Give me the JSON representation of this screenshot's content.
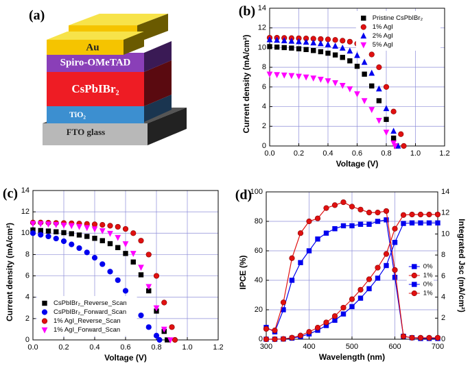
{
  "panel_a": {
    "label": "(a)",
    "layers": [
      "Au",
      "Spiro-OMeTAD",
      "CsPbIBr₂",
      "TiO₂",
      "FTO glass"
    ]
  },
  "chart_data": [
    {
      "type": "scatter",
      "panel_label": "(b)",
      "xlabel": "Voltage (V)",
      "ylabel": "Current density (mA/cm²)",
      "xlim": [
        0,
        1.2
      ],
      "ylim": [
        0,
        14
      ],
      "xticks": [
        {
          "value": 0,
          "label": "0.0"
        },
        0.2,
        0.4,
        0.6,
        0.8,
        {
          "value": 1,
          "label": "1.0"
        },
        1.2
      ],
      "yticks": [
        0,
        2,
        4,
        6,
        8,
        10,
        12,
        14
      ],
      "grid": true,
      "legend": "upper right",
      "lines": false,
      "series": [
        {
          "name": "Pristine CsPbIBr₂",
          "color": "#000000",
          "marker": "square",
          "x": [
            0,
            0.05,
            0.1,
            0.15,
            0.2,
            0.25,
            0.3,
            0.35,
            0.4,
            0.45,
            0.5,
            0.55,
            0.6,
            0.65,
            0.7,
            0.75,
            0.8,
            0.85,
            0.87
          ],
          "values": [
            10.1,
            10.05,
            10.0,
            9.95,
            9.88,
            9.8,
            9.7,
            9.58,
            9.43,
            9.25,
            9.0,
            8.65,
            8.1,
            7.3,
            6.1,
            4.6,
            2.7,
            0.8,
            0
          ]
        },
        {
          "name": "1% AgI",
          "color": "#e01010",
          "marker": "circle",
          "x": [
            0,
            0.05,
            0.1,
            0.15,
            0.2,
            0.25,
            0.3,
            0.35,
            0.4,
            0.45,
            0.5,
            0.55,
            0.6,
            0.65,
            0.7,
            0.75,
            0.8,
            0.85,
            0.9,
            0.92
          ],
          "values": [
            11.0,
            11.0,
            10.98,
            10.96,
            10.95,
            10.93,
            10.9,
            10.87,
            10.83,
            10.78,
            10.7,
            10.6,
            10.4,
            10.0,
            9.3,
            8.0,
            6.0,
            3.5,
            1.2,
            0
          ]
        },
        {
          "name": "2% AgI",
          "color": "#0000ee",
          "marker": "triangle-up",
          "x": [
            0,
            0.05,
            0.1,
            0.15,
            0.2,
            0.25,
            0.3,
            0.35,
            0.4,
            0.45,
            0.5,
            0.55,
            0.6,
            0.65,
            0.7,
            0.75,
            0.8,
            0.85,
            0.88
          ],
          "values": [
            10.8,
            10.75,
            10.7,
            10.65,
            10.6,
            10.55,
            10.48,
            10.4,
            10.3,
            10.15,
            9.95,
            9.65,
            9.2,
            8.5,
            7.4,
            5.8,
            3.8,
            1.5,
            0
          ]
        },
        {
          "name": "5% AgI",
          "color": "#ff00ff",
          "marker": "triangle-down",
          "x": [
            0,
            0.05,
            0.1,
            0.15,
            0.2,
            0.25,
            0.3,
            0.35,
            0.4,
            0.45,
            0.5,
            0.55,
            0.6,
            0.65,
            0.7,
            0.75,
            0.8,
            0.85,
            0.86
          ],
          "values": [
            7.3,
            7.25,
            7.2,
            7.15,
            7.08,
            7.0,
            6.9,
            6.78,
            6.62,
            6.42,
            6.15,
            5.8,
            5.3,
            4.6,
            3.7,
            2.6,
            1.4,
            0.3,
            0
          ]
        }
      ]
    },
    {
      "type": "scatter",
      "panel_label": "(c)",
      "xlabel": "Voltage (V)",
      "ylabel": "Current density (mA/cm²)",
      "xlim": [
        0,
        1.2
      ],
      "ylim": [
        0,
        14
      ],
      "xticks": [
        {
          "value": 0,
          "label": "0.0"
        },
        0.2,
        0.4,
        0.6,
        0.8,
        {
          "value": 1,
          "label": "1.0"
        },
        1.2
      ],
      "yticks": [
        0,
        2,
        4,
        6,
        8,
        10,
        12,
        14
      ],
      "grid": true,
      "legend": "lower left",
      "lines": false,
      "series": [
        {
          "name": "CsPbIBr₂_Reverse_Scan",
          "color": "#000000",
          "marker": "square",
          "x": [
            0,
            0.05,
            0.1,
            0.15,
            0.2,
            0.25,
            0.3,
            0.35,
            0.4,
            0.45,
            0.5,
            0.55,
            0.6,
            0.65,
            0.7,
            0.75,
            0.8,
            0.85,
            0.87
          ],
          "values": [
            10.3,
            10.25,
            10.2,
            10.13,
            10.05,
            9.95,
            9.83,
            9.7,
            9.52,
            9.3,
            9.02,
            8.65,
            8.1,
            7.3,
            6.1,
            4.6,
            2.7,
            0.8,
            0
          ]
        },
        {
          "name": "CsPbIBr₂_Forward_Scan",
          "color": "#0000ee",
          "marker": "circle",
          "x": [
            0,
            0.05,
            0.1,
            0.15,
            0.2,
            0.25,
            0.3,
            0.35,
            0.4,
            0.45,
            0.5,
            0.55,
            0.6,
            0.65,
            0.7,
            0.75,
            0.8,
            0.82
          ],
          "values": [
            10.0,
            9.85,
            9.7,
            9.5,
            9.25,
            8.95,
            8.6,
            8.2,
            7.7,
            7.1,
            6.4,
            5.6,
            4.6,
            3.5,
            2.3,
            1.2,
            0.4,
            0
          ]
        },
        {
          "name": "1% AgI_Reverse_Scan",
          "color": "#e01010",
          "marker": "circle",
          "x": [
            0,
            0.05,
            0.1,
            0.15,
            0.2,
            0.25,
            0.3,
            0.35,
            0.4,
            0.45,
            0.5,
            0.55,
            0.6,
            0.65,
            0.7,
            0.75,
            0.8,
            0.85,
            0.9,
            0.92
          ],
          "values": [
            11.0,
            11.0,
            10.98,
            10.96,
            10.95,
            10.93,
            10.9,
            10.87,
            10.83,
            10.78,
            10.7,
            10.6,
            10.4,
            10.0,
            9.3,
            8.0,
            6.0,
            3.5,
            1.2,
            0
          ]
        },
        {
          "name": "1% AgI_Forward_Scan",
          "color": "#ff00ff",
          "marker": "triangle-down",
          "x": [
            0,
            0.05,
            0.1,
            0.15,
            0.2,
            0.25,
            0.3,
            0.35,
            0.4,
            0.45,
            0.5,
            0.55,
            0.6,
            0.65,
            0.7,
            0.75,
            0.8,
            0.85,
            0.89
          ],
          "values": [
            10.9,
            10.88,
            10.85,
            10.8,
            10.75,
            10.7,
            10.62,
            10.52,
            10.4,
            10.22,
            9.98,
            9.6,
            9.0,
            8.1,
            6.8,
            5.0,
            3.0,
            1.0,
            0
          ]
        }
      ]
    },
    {
      "type": "line",
      "panel_label": "(d)",
      "xlabel": "Wavelength (nm)",
      "ylabel": "IPCE (%)",
      "y2label": "Integrated Jsc (mA/cm²)",
      "xlim": [
        300,
        700
      ],
      "ylim": [
        0,
        100
      ],
      "y2lim": [
        0,
        14
      ],
      "xticks": [
        300,
        400,
        500,
        600,
        700
      ],
      "yticks": [
        0,
        20,
        40,
        60,
        80,
        100
      ],
      "y2ticks": [
        0,
        2,
        4,
        6,
        8,
        10,
        12,
        14
      ],
      "grid": true,
      "legend": "center right",
      "lines": true,
      "x": [
        300,
        320,
        340,
        360,
        380,
        400,
        420,
        440,
        460,
        480,
        500,
        520,
        540,
        560,
        580,
        600,
        620,
        640,
        660,
        680,
        700
      ],
      "series": [
        {
          "name": "0%",
          "color": "#0000ee",
          "marker": "square",
          "values": [
            8,
            5,
            20,
            40,
            52,
            60,
            68,
            72,
            75,
            77,
            77,
            78,
            78,
            80,
            81,
            42,
            2,
            1,
            0.5,
            0.5,
            0.5
          ]
        },
        {
          "name": "1%",
          "color": "#e01010",
          "marker": "circle",
          "values": [
            7,
            6,
            25,
            55,
            72,
            80,
            82,
            89,
            91,
            93,
            90,
            88,
            86,
            86,
            87,
            47,
            2,
            1,
            1,
            1,
            1
          ]
        },
        {
          "name": "0%",
          "color": "#0000ee",
          "marker": "square",
          "axis": "y2",
          "values": [
            0,
            0,
            0.02,
            0.1,
            0.25,
            0.5,
            0.85,
            1.3,
            1.8,
            2.4,
            3.1,
            3.9,
            4.8,
            5.8,
            7.0,
            9.2,
            11.0,
            11.05,
            11.05,
            11.05,
            11.05
          ]
        },
        {
          "name": "1%",
          "color": "#e01010",
          "marker": "circle",
          "axis": "y2",
          "values": [
            0,
            0,
            0.03,
            0.15,
            0.35,
            0.7,
            1.1,
            1.6,
            2.2,
            3.0,
            3.8,
            4.7,
            5.7,
            6.8,
            8.1,
            10.5,
            11.8,
            11.85,
            11.85,
            11.85,
            11.85
          ]
        }
      ]
    }
  ]
}
